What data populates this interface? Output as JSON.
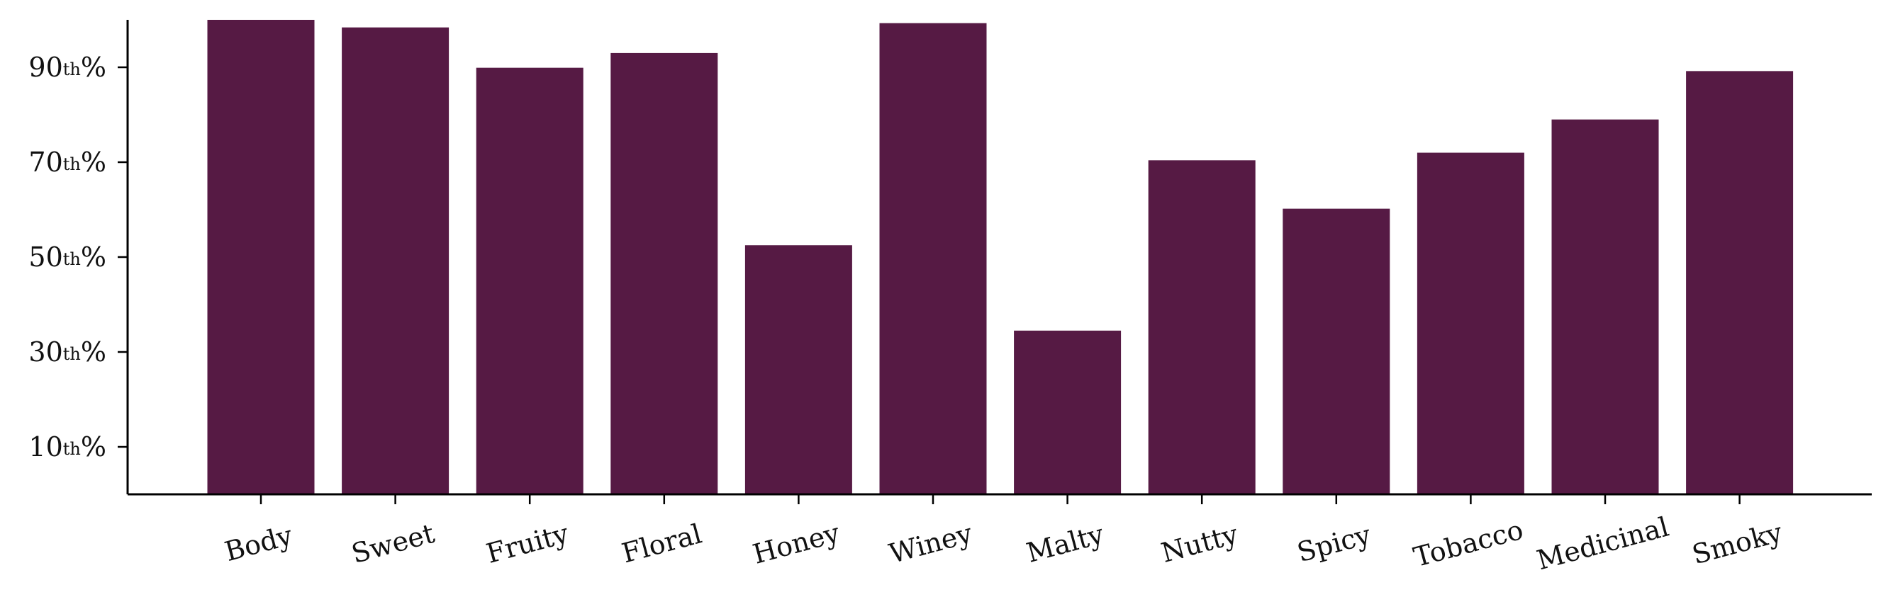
{
  "chart_data": {
    "type": "bar",
    "title": "",
    "xlabel": "",
    "ylabel": "",
    "categories": [
      "Body",
      "Sweet",
      "Fruity",
      "Floral",
      "Honey",
      "Winey",
      "Malty",
      "Nutty",
      "Spicy",
      "Tobacco",
      "Medicinal",
      "Smoky"
    ],
    "values": [
      100,
      98.4,
      89.9,
      93.0,
      52.5,
      99.3,
      34.5,
      70.4,
      60.2,
      72.0,
      79.0,
      89.2
    ],
    "ylim": [
      0,
      100
    ],
    "yticks": [
      {
        "value": 10,
        "num": "10",
        "sup": "th",
        "suffix": "%"
      },
      {
        "value": 30,
        "num": "30",
        "sup": "th",
        "suffix": "%"
      },
      {
        "value": 50,
        "num": "50",
        "sup": "th",
        "suffix": "%"
      },
      {
        "value": 70,
        "num": "70",
        "sup": "th",
        "suffix": "%"
      },
      {
        "value": 90,
        "num": "90",
        "sup": "th",
        "suffix": "%"
      }
    ],
    "bar_color": "#561a44",
    "grid": false,
    "legend": "none",
    "xtick_rotation": -15
  }
}
